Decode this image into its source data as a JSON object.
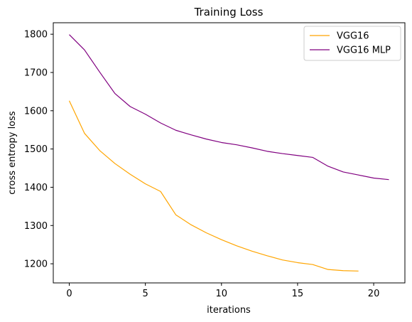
{
  "chart_data": {
    "type": "line",
    "title": "Training Loss",
    "xlabel": "iterations",
    "ylabel": "cross entropy loss",
    "xlim": [
      -1.05,
      22.05
    ],
    "ylim": [
      1150,
      1830
    ],
    "xticks": [
      0,
      5,
      10,
      15,
      20
    ],
    "yticks": [
      1200,
      1300,
      1400,
      1500,
      1600,
      1700,
      1800
    ],
    "grid": false,
    "legend_position": "top-right",
    "series": [
      {
        "name": "VGG16",
        "color": "#FFA500",
        "x": [
          0,
          1,
          2,
          3,
          4,
          5,
          6,
          7,
          8,
          9,
          10,
          11,
          12,
          13,
          14,
          15,
          16,
          17,
          18,
          19
        ],
        "y": [
          1626,
          1541,
          1496,
          1462,
          1434,
          1409,
          1389,
          1328,
          1302,
          1281,
          1263,
          1247,
          1233,
          1221,
          1210,
          1203,
          1198,
          1185,
          1182,
          1181
        ]
      },
      {
        "name": "VGG16 MLP",
        "color": "#800080",
        "x": [
          0,
          1,
          2,
          3,
          4,
          5,
          6,
          7,
          8,
          9,
          10,
          11,
          12,
          13,
          14,
          15,
          16,
          17,
          18,
          19,
          20,
          21
        ],
        "y": [
          1799,
          1759,
          1701,
          1645,
          1611,
          1591,
          1568,
          1549,
          1537,
          1526,
          1517,
          1511,
          1503,
          1494,
          1488,
          1483,
          1478,
          1455,
          1440,
          1432,
          1424,
          1420
        ]
      }
    ]
  }
}
